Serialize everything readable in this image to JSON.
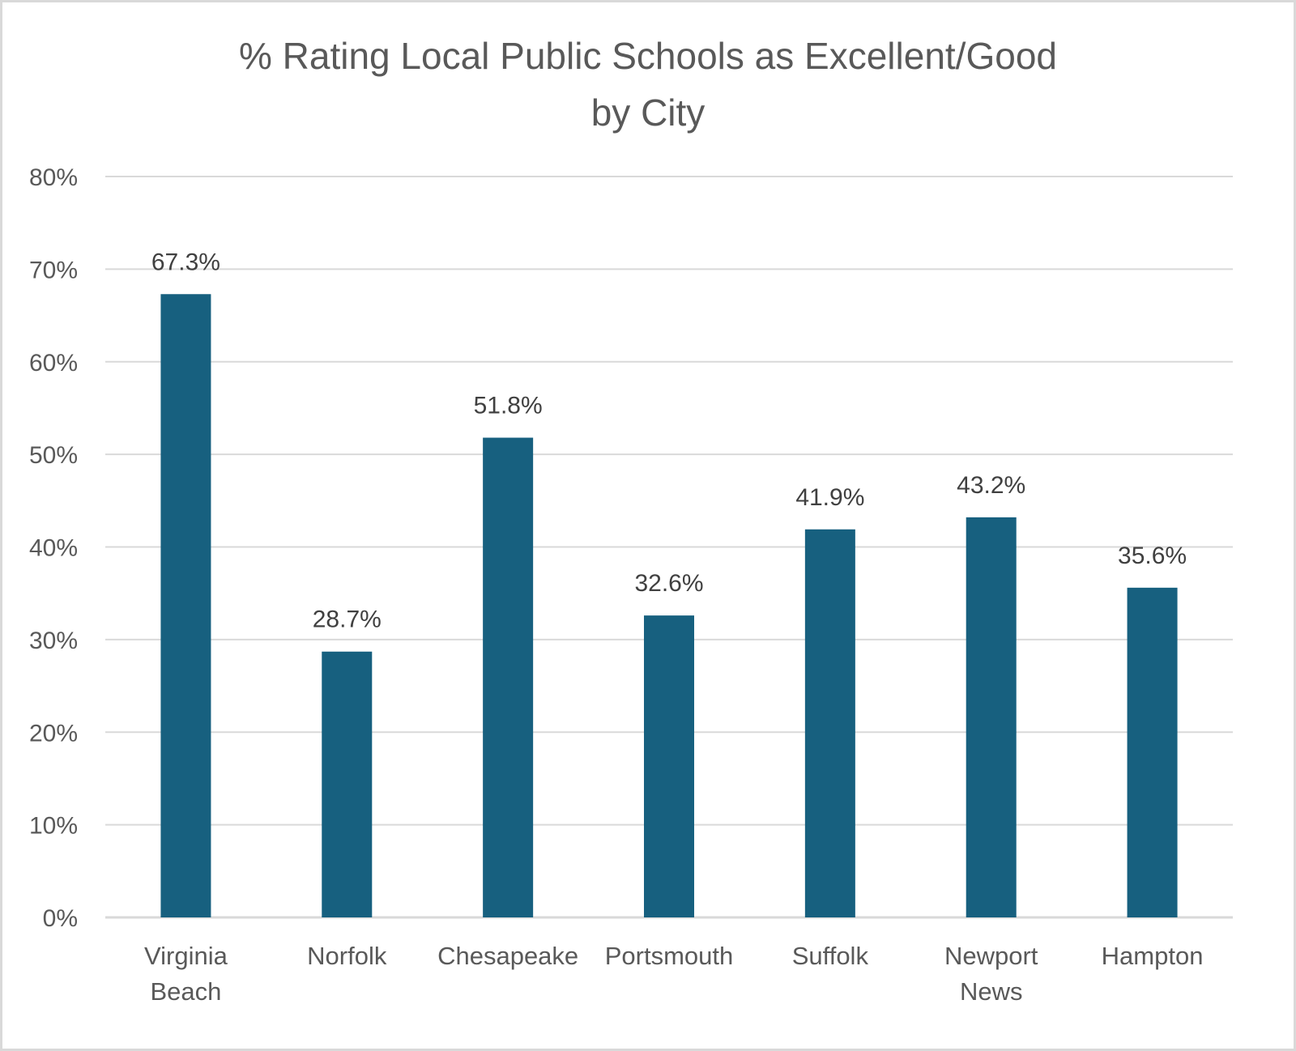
{
  "chart_data": {
    "type": "bar",
    "title": "% Rating Local Public Schools as Excellent/Good by City",
    "title_lines": [
      "% Rating Local Public Schools as Excellent/Good",
      "by City"
    ],
    "categories": [
      "Virginia Beach",
      "Norfolk",
      "Chesapeake",
      "Portsmouth",
      "Suffolk",
      "Newport News",
      "Hampton"
    ],
    "category_lines": [
      [
        "Virginia",
        "Beach"
      ],
      [
        "Norfolk"
      ],
      [
        "Chesapeake"
      ],
      [
        "Portsmouth"
      ],
      [
        "Suffolk"
      ],
      [
        "Newport",
        "News"
      ],
      [
        "Hampton"
      ]
    ],
    "values": [
      67.3,
      28.7,
      51.8,
      32.6,
      41.9,
      43.2,
      35.6
    ],
    "data_labels": [
      "67.3%",
      "28.7%",
      "51.8%",
      "32.6%",
      "41.9%",
      "43.2%",
      "35.6%"
    ],
    "xlabel": "",
    "ylabel": "",
    "ylim": [
      0,
      80
    ],
    "yticks": [
      0,
      10,
      20,
      30,
      40,
      50,
      60,
      70,
      80
    ],
    "ytick_labels": [
      "0%",
      "10%",
      "20%",
      "30%",
      "40%",
      "50%",
      "60%",
      "70%",
      "80%"
    ],
    "grid": true,
    "legend": "none",
    "colors": {
      "bar": "#17607f",
      "grid": "#d9d9d9",
      "text": "#595959",
      "data_label": "#404040"
    }
  }
}
